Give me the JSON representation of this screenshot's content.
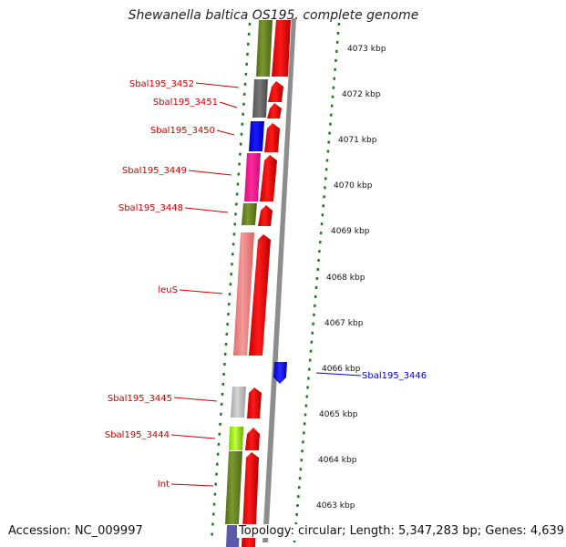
{
  "title": "Shewanella baltica OS195, complete genome",
  "accession": "Accession: NC_009997",
  "topology": "Topology: circular; Length: 5,347,283 bp; Genes: 4,639",
  "colors": {
    "forward_cds": "#ff0000",
    "reverse_cds": "#1010ff",
    "backbone": "#8a8a8a",
    "tick": "#1f7a1f",
    "label_left": "#cc0000",
    "label_right": "#0000cc"
  },
  "scale_labels": [
    "4073 kbp",
    "4072 kbp",
    "4071 kbp",
    "4070 kbp",
    "4069 kbp",
    "4068 kbp",
    "4067 kbp",
    "4066 kbp",
    "4065 kbp",
    "4064 kbp",
    "4063 kbp"
  ],
  "gene_labels_left": [
    "Sbal195_3452",
    "Sbal195_3451",
    "Sbal195_3450",
    "Sbal195_3449",
    "Sbal195_3448",
    "leuS",
    "Sbal195_3445",
    "Sbal195_3444",
    "Int"
  ],
  "gene_labels_right": [
    "Sbal195_3446"
  ],
  "category_colors": [
    "#6b8e23",
    "#696969",
    "#0000ff",
    "#ff1493",
    "#6b8e23",
    "#f08080",
    "#c0c0c0",
    "#adff2f",
    "#6b8e23"
  ]
}
